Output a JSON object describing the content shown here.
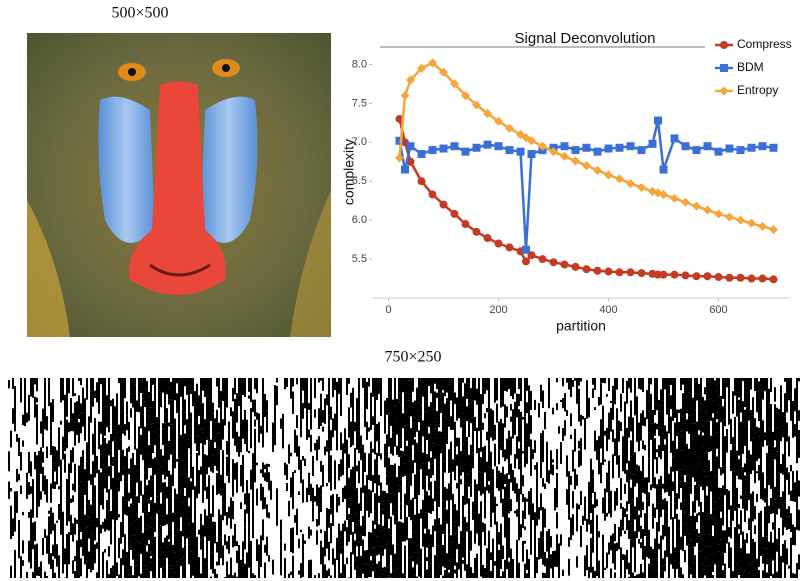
{
  "panels": {
    "original": {
      "label": "500×500"
    },
    "reshaped": {
      "label": "750×250"
    }
  },
  "chart_data": {
    "type": "line",
    "title": "Signal Deconvolution",
    "x_label": "partition",
    "y_label": "complexity",
    "x": [
      20,
      30,
      40,
      60,
      80,
      100,
      120,
      140,
      160,
      180,
      200,
      220,
      240,
      250,
      260,
      280,
      300,
      320,
      340,
      360,
      380,
      400,
      420,
      440,
      460,
      480,
      490,
      500,
      520,
      540,
      560,
      580,
      600,
      620,
      640,
      660,
      680,
      700
    ],
    "series": [
      {
        "name": "Compress",
        "color": "#c33b22",
        "marker": "circle",
        "values": [
          7.3,
          7.0,
          6.75,
          6.5,
          6.33,
          6.2,
          6.08,
          5.95,
          5.85,
          5.77,
          5.7,
          5.65,
          5.6,
          5.47,
          5.55,
          5.5,
          5.46,
          5.43,
          5.4,
          5.37,
          5.35,
          5.34,
          5.33,
          5.33,
          5.32,
          5.31,
          5.3,
          5.3,
          5.3,
          5.29,
          5.28,
          5.28,
          5.27,
          5.26,
          5.26,
          5.25,
          5.25,
          5.24
        ]
      },
      {
        "name": "BDM",
        "color": "#3a6fd6",
        "marker": "square",
        "values": [
          7.02,
          6.65,
          6.95,
          6.85,
          6.9,
          6.92,
          6.95,
          6.88,
          6.93,
          6.97,
          6.95,
          6.9,
          6.88,
          5.62,
          6.85,
          6.9,
          6.93,
          6.95,
          6.9,
          6.93,
          6.88,
          6.92,
          6.93,
          6.95,
          6.9,
          6.98,
          7.28,
          6.65,
          7.05,
          6.95,
          6.9,
          6.95,
          6.88,
          6.92,
          6.9,
          6.93,
          6.95,
          6.93
        ]
      },
      {
        "name": "Entropy",
        "color": "#f5a53a",
        "marker": "diamond",
        "values": [
          6.8,
          7.6,
          7.8,
          7.95,
          8.02,
          7.9,
          7.75,
          7.6,
          7.48,
          7.37,
          7.27,
          7.18,
          7.1,
          7.06,
          7.02,
          6.95,
          6.88,
          6.82,
          6.76,
          6.7,
          6.64,
          6.58,
          6.53,
          6.47,
          6.42,
          6.37,
          6.35,
          6.33,
          6.28,
          6.23,
          6.18,
          6.13,
          6.08,
          6.04,
          6.0,
          5.96,
          5.92,
          5.88
        ]
      }
    ],
    "xlim": [
      -30,
      730
    ],
    "ylim": [
      5.0,
      8.25
    ],
    "xticks": [
      0,
      200,
      400,
      600
    ],
    "yticks": [
      5.5,
      {
        "value": 6,
        "label": "6.0"
      },
      6.5,
      {
        "value": 7,
        "label": "7.0"
      },
      7.5,
      {
        "value": 8,
        "label": "8.0"
      }
    ],
    "legend": "upper right"
  }
}
